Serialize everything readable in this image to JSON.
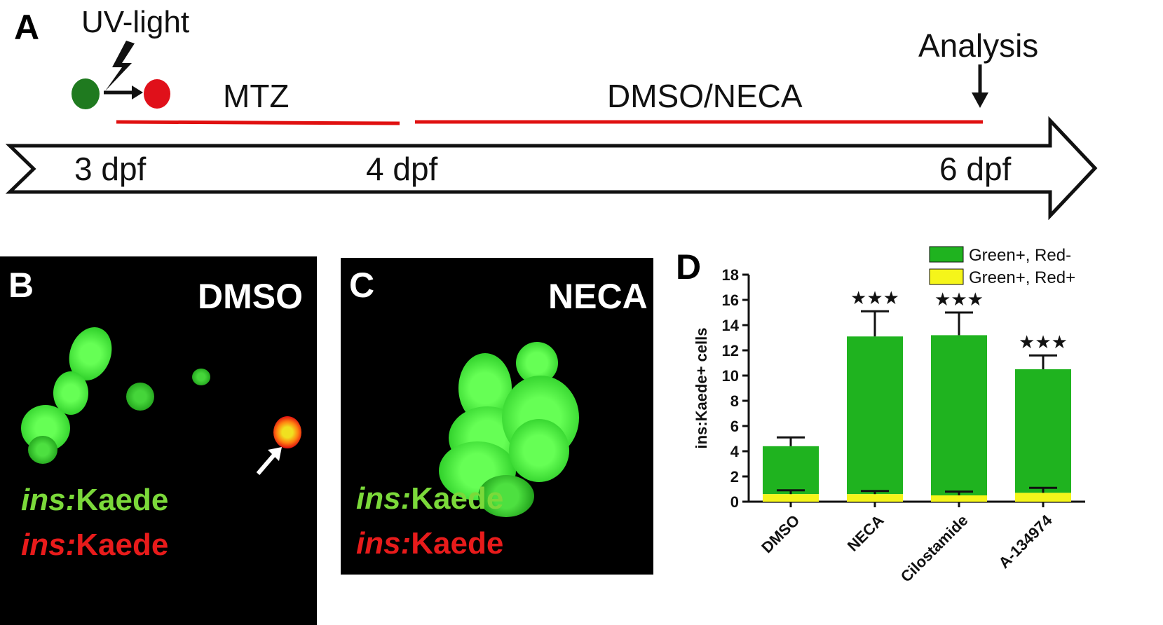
{
  "panel_a": {
    "letter": "A",
    "uv_label": "UV-light",
    "mtz_label": "MTZ",
    "treatment_label": "DMSO/NECA",
    "analysis_label": "Analysis",
    "timepoints": [
      "3 dpf",
      "4 dpf",
      "6 dpf"
    ],
    "colors": {
      "green_cell": "#1f7a1f",
      "red_cell": "#e0101a",
      "bar": "#e01010"
    },
    "icons": [
      "lightning-icon",
      "arrow-right-icon",
      "arrow-down-icon",
      "timeline-arrow"
    ]
  },
  "panel_b": {
    "letter": "B",
    "condition": "DMSO",
    "legend_green": {
      "italic": "ins:",
      "rest": "Kaede"
    },
    "legend_red": {
      "italic": "ins:",
      "rest": "Kaede"
    }
  },
  "panel_c": {
    "letter": "C",
    "condition": "NECA",
    "legend_green": {
      "italic": "ins:",
      "rest": "Kaede"
    },
    "legend_red": {
      "italic": "ins:",
      "rest": "Kaede"
    }
  },
  "panel_d": {
    "letter": "D",
    "significance": "★★★"
  },
  "chart_data": {
    "type": "bar",
    "stacked": true,
    "categories": [
      "DMSO",
      "NECA",
      "Cilostamide",
      "A-134974"
    ],
    "series": [
      {
        "name": "Green+, Red+",
        "color": "#f5f51a",
        "values": [
          0.6,
          0.6,
          0.5,
          0.7
        ],
        "error": [
          0.3,
          0.25,
          0.3,
          0.4
        ]
      },
      {
        "name": "Green+, Red-",
        "color": "#1fb31f",
        "values": [
          3.8,
          12.5,
          12.7,
          9.8
        ],
        "error": [
          0.7,
          2.0,
          1.8,
          1.1
        ]
      }
    ],
    "totals": [
      4.4,
      13.1,
      13.2,
      10.5
    ],
    "significance": [
      "",
      "★★★",
      "★★★",
      "★★★"
    ],
    "ylabel": "ins:Kaede+ cells",
    "ylim": [
      0,
      18
    ],
    "yticks": [
      "0",
      "2",
      "4",
      "6",
      "8",
      "10",
      "12",
      "14",
      "16",
      "18"
    ],
    "legend_position": "top-right"
  }
}
